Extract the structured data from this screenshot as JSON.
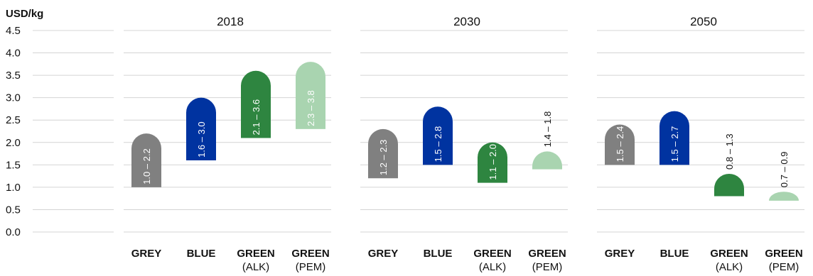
{
  "chart_data": {
    "type": "bar",
    "subtype": "floating-range",
    "ylabel": "USD/kg",
    "ylim": [
      0,
      4.5
    ],
    "yticks": [
      "0.0",
      "0.5",
      "1.0",
      "1.5",
      "2.0",
      "2.5",
      "3.0",
      "3.5",
      "4.0",
      "4.5"
    ],
    "grid": true,
    "colors": {
      "GREY": "#808080",
      "BLUE": "#0033a0",
      "GREEN_ALK": "#2e8540",
      "GREEN_PEM": "#a9d4b0"
    },
    "groups": [
      {
        "title": "2018",
        "bars": [
          {
            "category": "GREY",
            "subcategory": "",
            "color_key": "GREY",
            "low": 1.0,
            "high": 2.2,
            "label": "1.0 – 2.2",
            "label_inside": true
          },
          {
            "category": "BLUE",
            "subcategory": "",
            "color_key": "BLUE",
            "low": 1.6,
            "high": 3.0,
            "label": "1.6 – 3.0",
            "label_inside": true
          },
          {
            "category": "GREEN",
            "subcategory": "(ALK)",
            "color_key": "GREEN_ALK",
            "low": 2.1,
            "high": 3.6,
            "label": "2.1 – 3.6",
            "label_inside": true
          },
          {
            "category": "GREEN",
            "subcategory": "(PEM)",
            "color_key": "GREEN_PEM",
            "low": 2.3,
            "high": 3.8,
            "label": "2.3 – 3.8",
            "label_inside": true
          }
        ]
      },
      {
        "title": "2030",
        "bars": [
          {
            "category": "GREY",
            "subcategory": "",
            "color_key": "GREY",
            "low": 1.2,
            "high": 2.3,
            "label": "1.2 – 2.3",
            "label_inside": true
          },
          {
            "category": "BLUE",
            "subcategory": "",
            "color_key": "BLUE",
            "low": 1.5,
            "high": 2.8,
            "label": "1.5 – 2.8",
            "label_inside": true
          },
          {
            "category": "GREEN",
            "subcategory": "(ALK)",
            "color_key": "GREEN_ALK",
            "low": 1.1,
            "high": 2.0,
            "label": "1.1 – 2.0",
            "label_inside": true
          },
          {
            "category": "GREEN",
            "subcategory": "(PEM)",
            "color_key": "GREEN_PEM",
            "low": 1.4,
            "high": 1.8,
            "label": "1.4 – 1.8",
            "label_inside": false
          }
        ]
      },
      {
        "title": "2050",
        "bars": [
          {
            "category": "GREY",
            "subcategory": "",
            "color_key": "GREY",
            "low": 1.5,
            "high": 2.4,
            "label": "1.5 – 2.4",
            "label_inside": true
          },
          {
            "category": "BLUE",
            "subcategory": "",
            "color_key": "BLUE",
            "low": 1.5,
            "high": 2.7,
            "label": "1.5 – 2.7",
            "label_inside": true
          },
          {
            "category": "GREEN",
            "subcategory": "(ALK)",
            "color_key": "GREEN_ALK",
            "low": 0.8,
            "high": 1.3,
            "label": "0.8 – 1.3",
            "label_inside": false
          },
          {
            "category": "GREEN",
            "subcategory": "(PEM)",
            "color_key": "GREEN_PEM",
            "low": 0.7,
            "high": 0.9,
            "label": "0.7 – 0.9",
            "label_inside": false
          }
        ]
      }
    ]
  }
}
